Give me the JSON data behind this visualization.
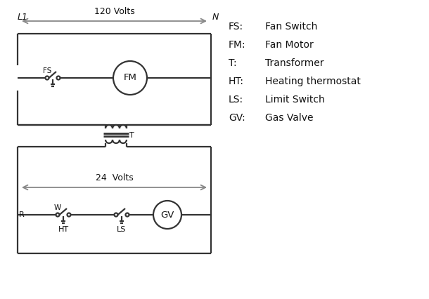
{
  "bg_color": "#ffffff",
  "line_color": "#333333",
  "gray_color": "#888888",
  "text_color": "#111111",
  "legend": {
    "FS": "Fan Switch",
    "FM": "Fan Motor",
    "T": "Transformer",
    "HT": "Heating thermostat",
    "LS": "Limit Switch",
    "GV": "Gas Valve"
  },
  "volts_120": "120 Volts",
  "volts_24": "24  Volts",
  "L1_label": "L1",
  "N_label": "N",
  "R_label": "R",
  "W_label": "W",
  "HT_label": "HT",
  "LS_label": "LS",
  "T_label": "T",
  "FS_label": "FS",
  "FM_label": "FM",
  "GV_label": "GV"
}
